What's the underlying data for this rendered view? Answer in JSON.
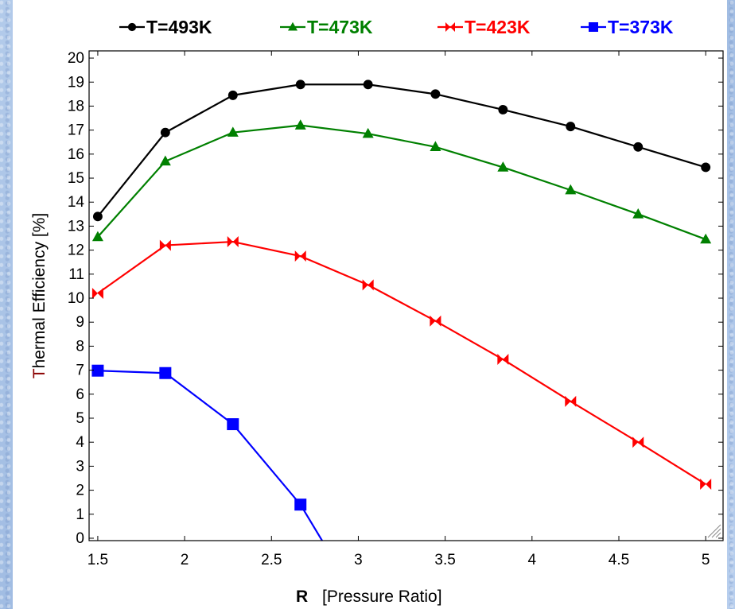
{
  "chart_data": {
    "type": "line",
    "xlabel_bold": "R",
    "xlabel_rest": "[Pressure Ratio]",
    "ylabel_first": "T",
    "ylabel_rest": "hermal Efficiency [%]",
    "xlim": [
      1.5,
      5
    ],
    "ylim": [
      0,
      20
    ],
    "x_ticks": [
      "1.5",
      "2",
      "2.5",
      "3",
      "3.5",
      "4",
      "4.5",
      "5"
    ],
    "y_ticks": [
      "0",
      "1",
      "2",
      "3",
      "4",
      "5",
      "6",
      "7",
      "8",
      "9",
      "10",
      "11",
      "12",
      "13",
      "14",
      "15",
      "16",
      "17",
      "18",
      "19",
      "20"
    ],
    "grid": false,
    "legend_position": "top",
    "series": [
      {
        "name": "T=493K",
        "color": "#000000",
        "marker": "circle",
        "x": [
          1.5,
          1.889,
          2.278,
          2.667,
          3.056,
          3.444,
          3.833,
          4.222,
          4.611,
          5.0
        ],
        "y": [
          13.4,
          16.9,
          18.45,
          18.9,
          18.9,
          18.5,
          17.85,
          17.15,
          16.3,
          15.45
        ]
      },
      {
        "name": "T=473K",
        "color": "#008000",
        "marker": "triangle",
        "x": [
          1.5,
          1.889,
          2.278,
          2.667,
          3.056,
          3.444,
          3.833,
          4.222,
          4.611,
          5.0
        ],
        "y": [
          12.55,
          15.7,
          16.9,
          17.2,
          16.85,
          16.3,
          15.45,
          14.5,
          13.5,
          12.45
        ]
      },
      {
        "name": "T=423K",
        "color": "#ff0000",
        "marker": "bowtie",
        "x": [
          1.5,
          1.889,
          2.278,
          2.667,
          3.056,
          3.444,
          3.833,
          4.222,
          4.611,
          5.0
        ],
        "y": [
          10.2,
          12.2,
          12.35,
          11.75,
          10.55,
          9.05,
          7.45,
          5.7,
          4.0,
          2.25
        ]
      },
      {
        "name": "T=373K",
        "color": "#0000ff",
        "marker": "square",
        "x": [
          1.5,
          1.889,
          2.278,
          2.667,
          2.8
        ],
        "y": [
          6.98,
          6.88,
          4.75,
          1.4,
          -0.2
        ]
      }
    ]
  }
}
